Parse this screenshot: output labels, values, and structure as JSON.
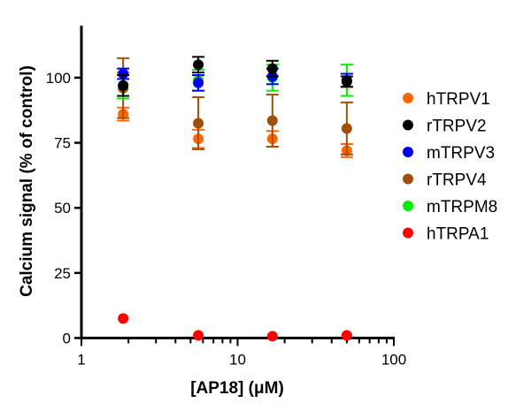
{
  "chart_data": {
    "type": "scatter",
    "title": "",
    "xlabel": "[AP18] (μM)",
    "ylabel": "Calcium signal (% of control)",
    "xscale": "log",
    "xlim": [
      1,
      100
    ],
    "ylim": [
      0,
      120
    ],
    "xticks": [
      1,
      10,
      100
    ],
    "xtick_labels": [
      "1",
      "10",
      "100"
    ],
    "yticks": [
      0,
      25,
      50,
      75,
      100
    ],
    "ytick_labels": [
      "0",
      "25",
      "50",
      "75",
      "100"
    ],
    "legend_position": "right",
    "x": [
      1.85,
      5.6,
      16.7,
      50
    ],
    "series": [
      {
        "name": "hTRPV1",
        "color": "#ff6600",
        "values": [
          86,
          76.5,
          76.5,
          72
        ],
        "errors": [
          2.5,
          3.5,
          3,
          2.5
        ]
      },
      {
        "name": "rTRPV4",
        "color": "#a0500a",
        "values": [
          96,
          82.5,
          83.5,
          80.5
        ],
        "errors": [
          11.5,
          10,
          10,
          10
        ]
      },
      {
        "name": "mTRPM8",
        "color": "#00ee00",
        "values": [
          97,
          99,
          100,
          99
        ],
        "errors": [
          5,
          4,
          5,
          6
        ]
      },
      {
        "name": "mTRPV3",
        "color": "#0000ee",
        "values": [
          101.5,
          98,
          100.5,
          99
        ],
        "errors": [
          2,
          3,
          3,
          2.5
        ]
      },
      {
        "name": "rTRPV2",
        "color": "#000000",
        "values": [
          97,
          105,
          103.5,
          98.5
        ],
        "errors": [
          4,
          3,
          3,
          2
        ]
      },
      {
        "name": "hTRPA1",
        "color": "#ff0000",
        "values": [
          7.5,
          1,
          0.7,
          1
        ],
        "errors": [
          0,
          0,
          0,
          0
        ]
      }
    ],
    "legend": [
      "hTRPV1",
      "rTRPV2",
      "mTRPV3",
      "rTRPV4",
      "mTRPM8",
      "hTRPA1"
    ]
  }
}
